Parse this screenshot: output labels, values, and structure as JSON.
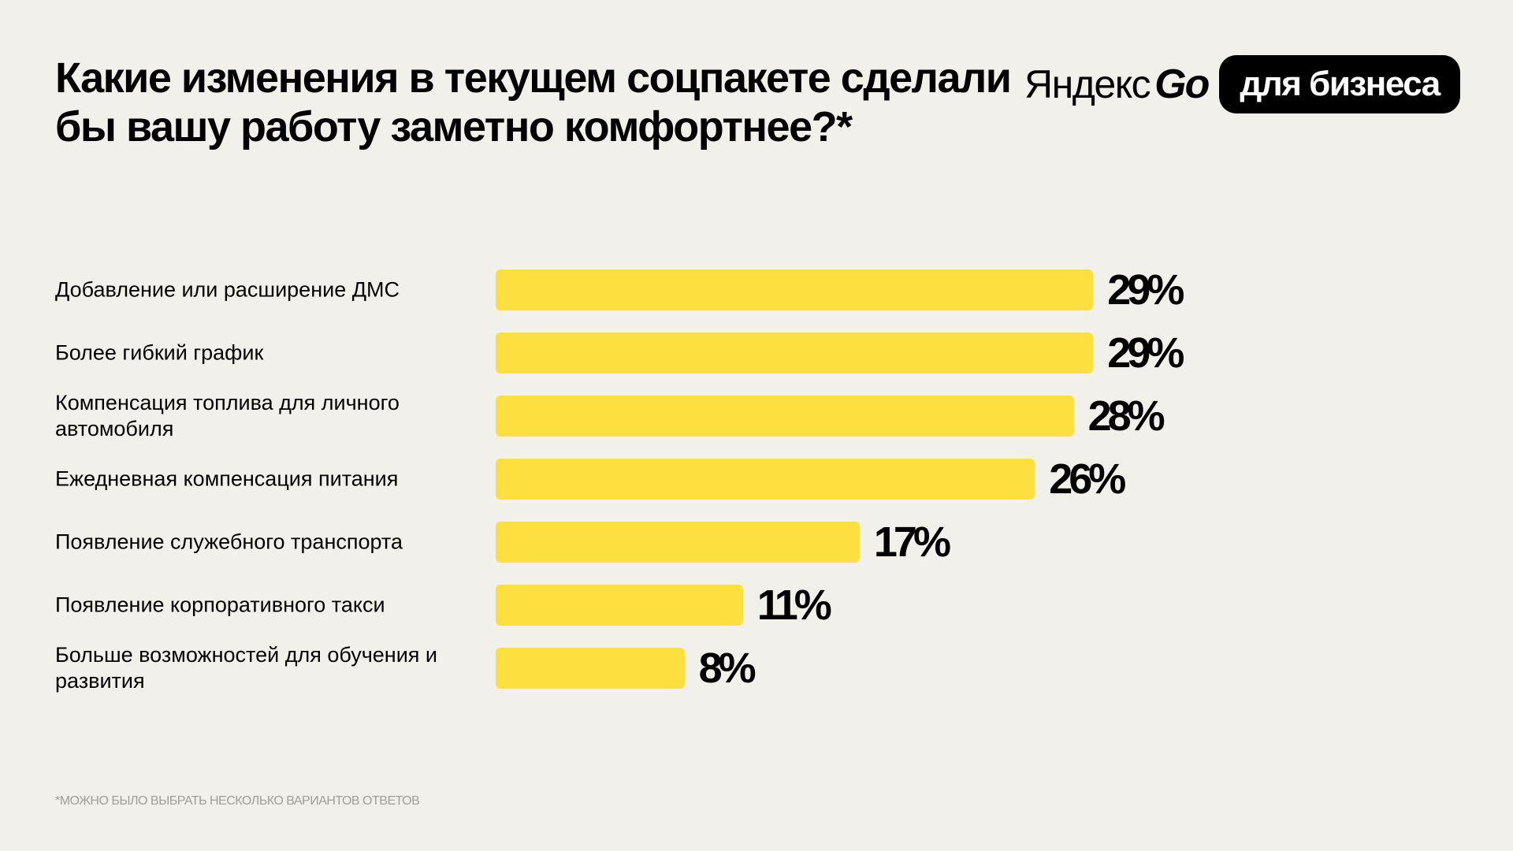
{
  "chart_data": {
    "type": "bar",
    "orientation": "horizontal",
    "title": "Какие изменения в текущем соцпакете сделали бы вашу работу заметно комфортнее?*",
    "categories": [
      "Добавление или расширение ДМС",
      "Более гибкий график",
      "Компенсация топлива для личного автомобиля",
      "Ежедневная компенсация питания",
      "Появление служебного транспорта",
      "Появление корпоративного такси",
      "Больше возможностей для обучения и развития"
    ],
    "values": [
      29,
      29,
      28,
      26,
      17,
      11,
      8
    ],
    "value_labels": [
      "29%",
      "29%",
      "28%",
      "26%",
      "17%",
      "11%",
      "8%"
    ],
    "color": "#fddf3f",
    "footnote": "*МОЖНО БЫЛО ВЫБРАТЬ НЕСКОЛЬКО ВАРИАНТОВ ОТВЕТОВ"
  },
  "logo": {
    "brand": "Яндекс",
    "product": "Go",
    "badge": "для бизнеса"
  }
}
